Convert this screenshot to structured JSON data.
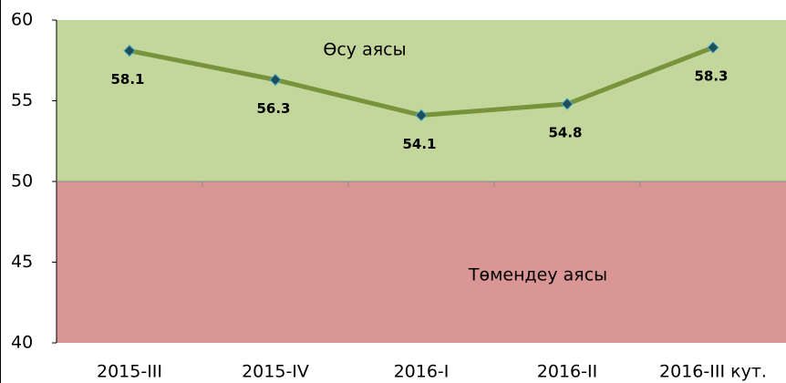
{
  "chart_data": {
    "type": "line",
    "categories": [
      "2015-III",
      "2015-IV",
      "2016-I",
      "2016-II",
      "2016-III кут."
    ],
    "series": [
      {
        "color": "#77933c",
        "values": [
          58.1,
          56.3,
          54.1,
          54.8,
          58.3
        ]
      }
    ],
    "ylim": [
      40,
      60
    ],
    "yticks": [
      40,
      45,
      50,
      55,
      60
    ],
    "bands": [
      {
        "from": 50,
        "to": 60,
        "label": "Өсу аясы",
        "color": "#c3d69b"
      },
      {
        "from": 40,
        "to": 50,
        "label": "Төмендеу аясы",
        "color": "#d99694"
      }
    ]
  }
}
